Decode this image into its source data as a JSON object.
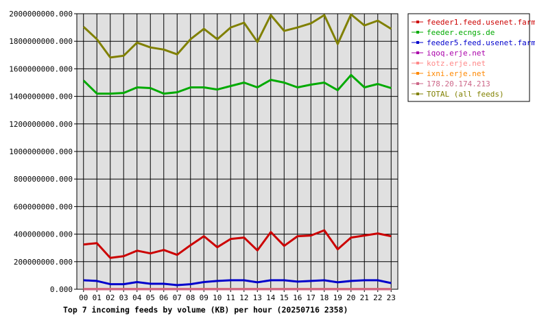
{
  "chart_data": {
    "type": "line",
    "title": "Top 7 incoming feeds by volume (KB) per hour (20250716 2358)",
    "categories": [
      "00",
      "01",
      "02",
      "03",
      "04",
      "05",
      "06",
      "07",
      "08",
      "09",
      "10",
      "11",
      "12",
      "13",
      "14",
      "15",
      "16",
      "17",
      "18",
      "19",
      "20",
      "21",
      "22",
      "23"
    ],
    "y_ticks": [
      "0.000",
      "200000000.000",
      "400000000.000",
      "600000000.000",
      "800000000.000",
      "1000000000.000",
      "1200000000.000",
      "1400000000.000",
      "1600000000.000",
      "1800000000.000",
      "2000000000.000"
    ],
    "ylim": [
      0,
      2000000000
    ],
    "grid": true,
    "legend_position": "right",
    "series": [
      {
        "name": "feeder1.feed.usenet.farm",
        "color": "#cc0000",
        "values": [
          325000000,
          335000000,
          228000000,
          240000000,
          280000000,
          260000000,
          285000000,
          250000000,
          320000000,
          385000000,
          305000000,
          365000000,
          375000000,
          282000000,
          415000000,
          315000000,
          385000000,
          390000000,
          428000000,
          290000000,
          375000000,
          390000000,
          405000000,
          385000000
        ]
      },
      {
        "name": "feeder.ecngs.de",
        "color": "#00aa00",
        "values": [
          1515000000,
          1420000000,
          1420000000,
          1425000000,
          1465000000,
          1460000000,
          1420000000,
          1430000000,
          1465000000,
          1465000000,
          1450000000,
          1475000000,
          1500000000,
          1465000000,
          1520000000,
          1500000000,
          1465000000,
          1485000000,
          1500000000,
          1445000000,
          1555000000,
          1465000000,
          1490000000,
          1460000000
        ]
      },
      {
        "name": "feeder5.feed.usenet.farm",
        "color": "#0000cc",
        "values": [
          65000000,
          60000000,
          37000000,
          37000000,
          52000000,
          40000000,
          40000000,
          30000000,
          37000000,
          52000000,
          60000000,
          65000000,
          65000000,
          50000000,
          65000000,
          65000000,
          55000000,
          60000000,
          65000000,
          50000000,
          60000000,
          65000000,
          65000000,
          45000000
        ]
      },
      {
        "name": "iqoq.erje.net",
        "color": "#aa00aa",
        "values": [
          600000,
          600000,
          600000,
          600000,
          600000,
          600000,
          600000,
          600000,
          600000,
          600000,
          600000,
          600000,
          600000,
          600000,
          600000,
          600000,
          600000,
          600000,
          600000,
          600000,
          600000,
          600000,
          600000,
          600000
        ]
      },
      {
        "name": "kotz.erje.net",
        "color": "#ff8888",
        "values": [
          900000,
          900000,
          900000,
          900000,
          900000,
          900000,
          900000,
          900000,
          900000,
          900000,
          900000,
          900000,
          900000,
          900000,
          900000,
          900000,
          900000,
          900000,
          900000,
          900000,
          900000,
          900000,
          900000,
          900000
        ]
      },
      {
        "name": "ixni.erje.net",
        "color": "#ff8800",
        "values": [
          1200000,
          1200000,
          1200000,
          1200000,
          1200000,
          1200000,
          1200000,
          1200000,
          1200000,
          1200000,
          1200000,
          1200000,
          1200000,
          1200000,
          1200000,
          1200000,
          1200000,
          1200000,
          1200000,
          1200000,
          1200000,
          1200000,
          1200000,
          1200000
        ]
      },
      {
        "name": "178.20.174.213",
        "color": "#cc6688",
        "values": [
          300000,
          300000,
          300000,
          300000,
          300000,
          300000,
          300000,
          300000,
          300000,
          300000,
          300000,
          300000,
          300000,
          300000,
          300000,
          300000,
          300000,
          300000,
          300000,
          300000,
          300000,
          300000,
          300000,
          300000
        ]
      },
      {
        "name": "TOTAL (all feeds)",
        "color": "#808000",
        "values": [
          1905000000,
          1815000000,
          1682000000,
          1695000000,
          1790000000,
          1755000000,
          1740000000,
          1705000000,
          1815000000,
          1890000000,
          1815000000,
          1900000000,
          1935000000,
          1795000000,
          1990000000,
          1875000000,
          1900000000,
          1930000000,
          1990000000,
          1780000000,
          1995000000,
          1915000000,
          1950000000,
          1890000000
        ]
      }
    ]
  }
}
